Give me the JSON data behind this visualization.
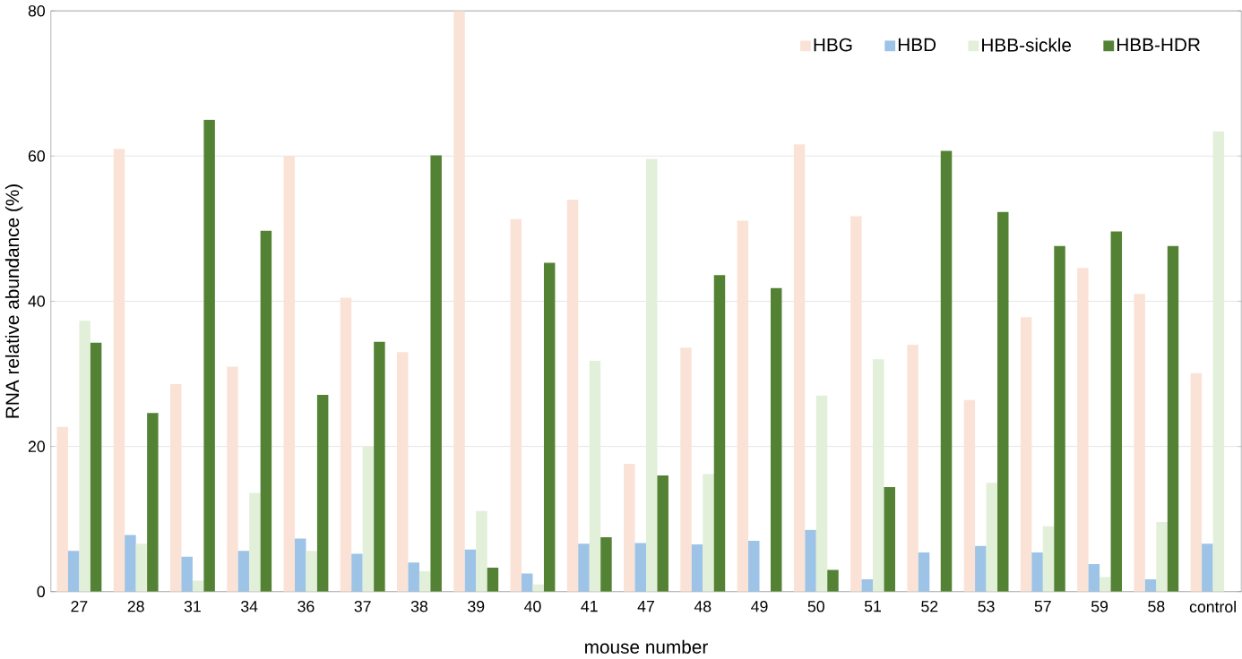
{
  "chart_data": {
    "type": "bar",
    "xlabel": "mouse number",
    "ylabel": "RNA relative abundance (%)",
    "categories": [
      "27",
      "28",
      "31",
      "34",
      "36",
      "37",
      "38",
      "39",
      "40",
      "41",
      "47",
      "48",
      "49",
      "50",
      "51",
      "52",
      "53",
      "57",
      "59",
      "58",
      "control"
    ],
    "series": [
      {
        "name": "HBG",
        "color": "#fae3d6",
        "values": [
          22.7,
          61,
          28.6,
          31,
          60,
          40.5,
          33,
          80,
          51.3,
          54,
          17.6,
          33.6,
          51.1,
          61.6,
          51.7,
          34,
          26.4,
          37.8,
          44.6,
          41,
          30.1
        ]
      },
      {
        "name": "HBD",
        "color": "#9dc3e6",
        "values": [
          5.6,
          7.8,
          4.8,
          5.6,
          7.3,
          5.2,
          4,
          5.8,
          2.5,
          6.6,
          6.7,
          6.5,
          7,
          8.5,
          1.7,
          5.4,
          6.3,
          5.4,
          3.8,
          1.7,
          6.6
        ]
      },
      {
        "name": "HBB-sickle",
        "color": "#e2efd9",
        "values": [
          37.3,
          6.6,
          1.5,
          13.6,
          5.6,
          20,
          2.8,
          11.1,
          1,
          31.8,
          59.6,
          16.2,
          null,
          27,
          32,
          null,
          15,
          9,
          2,
          9.6,
          63.4
        ]
      },
      {
        "name": "HBB-HDR",
        "color": "#548235",
        "values": [
          34.3,
          24.6,
          65,
          49.7,
          27.1,
          34.4,
          60.1,
          3.3,
          45.3,
          7.5,
          16,
          43.6,
          41.8,
          3,
          14.4,
          60.7,
          52.3,
          47.6,
          49.6,
          47.6,
          null
        ]
      }
    ],
    "ylim": [
      0,
      80
    ],
    "yticks": [
      0,
      20,
      40,
      60,
      80
    ],
    "grid": "y",
    "legend": "top right"
  }
}
